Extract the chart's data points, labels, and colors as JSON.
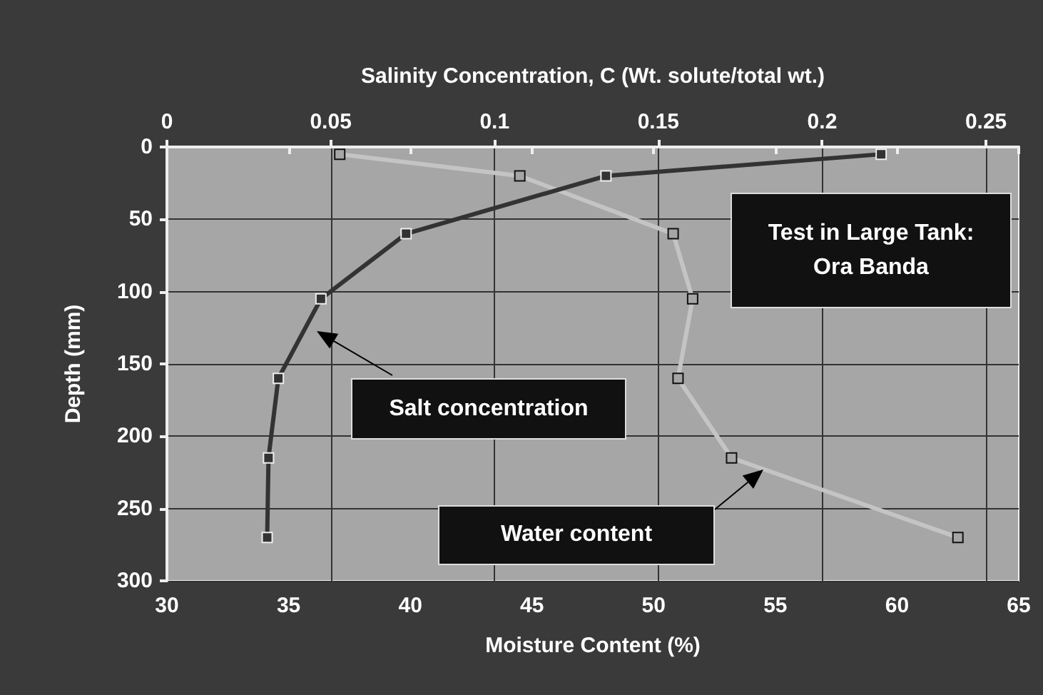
{
  "chart_data": {
    "type": "line",
    "x2label": "Salinity Concentration, C (Wt. solute/total wt.)",
    "xlabel": "Moisture Content (%)",
    "ylabel": "Depth (mm)",
    "xlim": [
      30,
      65
    ],
    "xticks": [
      30,
      35,
      40,
      45,
      50,
      55,
      60,
      65
    ],
    "x2lim": [
      0,
      0.26
    ],
    "x2ticks": [
      0,
      0.05,
      0.1,
      0.15,
      0.2,
      0.25
    ],
    "ylim": [
      300,
      0
    ],
    "yticks": [
      0,
      50,
      100,
      150,
      200,
      250,
      300
    ],
    "grid": true,
    "marker": "square",
    "line_style": "solid",
    "series": [
      {
        "color": "#c4c4c4",
        "x": [
          37.1,
          44.5,
          50.8,
          51.6,
          51.0,
          53.2,
          62.5
        ],
        "values": [
          5,
          20,
          60,
          105,
          160,
          215,
          270
        ]
      },
      {
        "axis": "x2",
        "color": "#333333",
        "x": [
          0.218,
          0.134,
          0.073,
          0.047,
          0.034,
          0.031,
          0.0306
        ],
        "values": [
          5,
          20,
          60,
          105,
          160,
          215,
          270
        ]
      }
    ],
    "annotations": [
      "Test in Large Tank: Ora Banda",
      "Salt concentration",
      "Water content"
    ]
  }
}
